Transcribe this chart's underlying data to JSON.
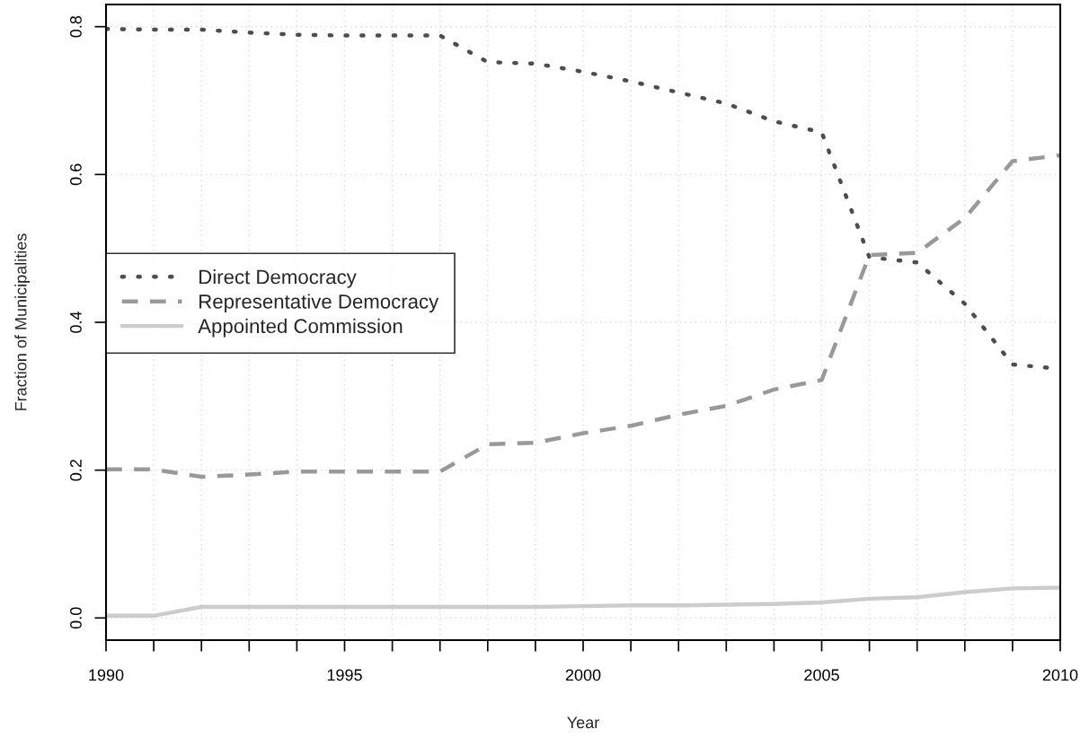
{
  "chart_data": {
    "type": "line",
    "xlabel": "Year",
    "ylabel": "Fraction of Municipalities",
    "x": [
      1990,
      1991,
      1992,
      1993,
      1994,
      1995,
      1996,
      1997,
      1998,
      1999,
      2000,
      2001,
      2002,
      2003,
      2004,
      2005,
      2006,
      2007,
      2008,
      2009,
      2010
    ],
    "series": [
      {
        "name": "Direct Democracy",
        "color": "#4d4d4d",
        "line_style": "dotted",
        "values": [
          0.797,
          0.796,
          0.796,
          0.792,
          0.789,
          0.788,
          0.788,
          0.788,
          0.752,
          0.75,
          0.739,
          0.726,
          0.711,
          0.696,
          0.672,
          0.657,
          0.488,
          0.481,
          0.425,
          0.343,
          0.337
        ]
      },
      {
        "name": "Representative Democracy",
        "color": "#999999",
        "line_style": "dashed",
        "values": [
          0.201,
          0.201,
          0.191,
          0.194,
          0.198,
          0.198,
          0.198,
          0.198,
          0.235,
          0.237,
          0.25,
          0.26,
          0.275,
          0.287,
          0.309,
          0.322,
          0.491,
          0.494,
          0.541,
          0.618,
          0.626
        ]
      },
      {
        "name": "Appointed Commission",
        "color": "#cccccc",
        "line_style": "solid",
        "values": [
          0.003,
          0.003,
          0.015,
          0.015,
          0.015,
          0.015,
          0.015,
          0.015,
          0.015,
          0.015,
          0.016,
          0.017,
          0.017,
          0.018,
          0.019,
          0.021,
          0.026,
          0.028,
          0.035,
          0.04,
          0.041
        ]
      }
    ],
    "xlim": [
      1990,
      2010
    ],
    "xticks": [
      1990,
      {
        "value": 1991,
        "label": null
      },
      {
        "value": 1992,
        "label": null
      },
      {
        "value": 1993,
        "label": null
      },
      {
        "value": 1994,
        "label": null
      },
      1995,
      {
        "value": 1996,
        "label": null
      },
      {
        "value": 1997,
        "label": null
      },
      {
        "value": 1998,
        "label": null
      },
      {
        "value": 1999,
        "label": null
      },
      2000,
      {
        "value": 2001,
        "label": null
      },
      {
        "value": 2002,
        "label": null
      },
      {
        "value": 2003,
        "label": null
      },
      {
        "value": 2004,
        "label": null
      },
      2005,
      {
        "value": 2006,
        "label": null
      },
      {
        "value": 2007,
        "label": null
      },
      {
        "value": 2008,
        "label": null
      },
      {
        "value": 2009,
        "label": null
      },
      2010
    ],
    "ylim": [
      -0.03,
      0.83
    ],
    "yticks": [
      {
        "value": 0,
        "label": "0.0"
      },
      {
        "value": 0.2,
        "label": "0.2"
      },
      {
        "value": 0.4,
        "label": "0.4"
      },
      {
        "value": 0.6,
        "label": "0.6"
      },
      {
        "value": 0.8,
        "label": "0.8"
      }
    ],
    "grid": true,
    "legend": "left"
  }
}
